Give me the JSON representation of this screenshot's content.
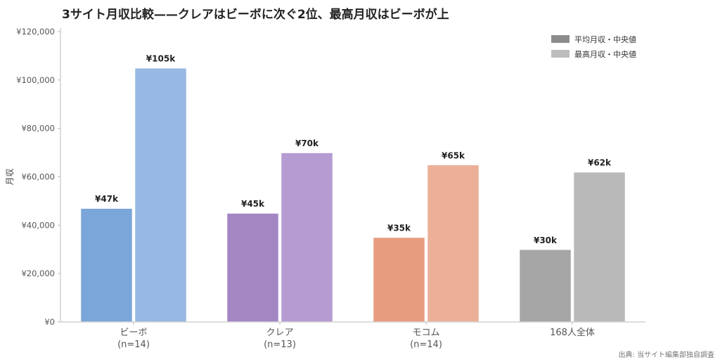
{
  "chart_data": {
    "type": "bar",
    "title": "3サイト月収比較——クレアはビーボに次ぐ2位、最高月収はビーボが上",
    "xlabel": "",
    "ylabel": "月収",
    "ylim": [
      0,
      120000
    ],
    "yticks": [
      0,
      20000,
      40000,
      60000,
      80000,
      100000,
      120000
    ],
    "ytick_labels": [
      "¥0",
      "¥20,000",
      "¥40,000",
      "¥60,000",
      "¥80,000",
      "¥100,000",
      "¥120,000"
    ],
    "categories": [
      {
        "name": "ビーボ",
        "sub": "(n=14)"
      },
      {
        "name": "クレア",
        "sub": "(n=13)"
      },
      {
        "name": "モコム",
        "sub": "(n=14)"
      },
      {
        "name": "168人全体",
        "sub": ""
      }
    ],
    "series": [
      {
        "name": "平均月収・中央値",
        "values": [
          47000,
          45000,
          35000,
          30000
        ],
        "labels": [
          "¥47k",
          "¥45k",
          "¥35k",
          "¥30k"
        ],
        "legend_color": "#8c8c8c"
      },
      {
        "name": "最高月収・中央値",
        "values": [
          105000,
          70000,
          65000,
          62000
        ],
        "labels": [
          "¥105k",
          "¥70k",
          "¥65k",
          "¥62k"
        ],
        "legend_color": "#bdbdbd"
      }
    ],
    "bar_colors": [
      [
        "#7ba6d9",
        "#96b8e2"
      ],
      [
        "#a486c3",
        "#b69bd3"
      ],
      [
        "#e89c7e",
        "#ecb098"
      ],
      [
        "#a6a6a6",
        "#b9b9b9"
      ]
    ],
    "grid": false,
    "legend_position": "top-right"
  },
  "source_note": "出典: 当サイト編集部独自調査"
}
